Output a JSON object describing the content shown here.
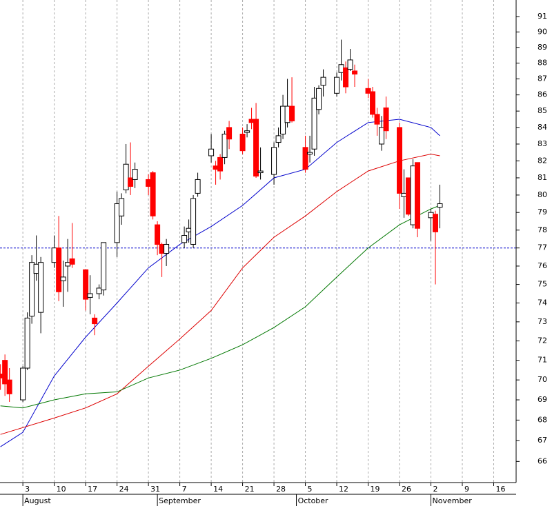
{
  "chart_data": {
    "type": "candlestick",
    "x": [
      -2,
      -1,
      0,
      3,
      4,
      5,
      6,
      7,
      10,
      11,
      12,
      13,
      14,
      17,
      18,
      19,
      20,
      21,
      24,
      25,
      26,
      27,
      28,
      31,
      32,
      33,
      34,
      35,
      39,
      40,
      41,
      42,
      45,
      46,
      47,
      48,
      49,
      52,
      53,
      54,
      55,
      56,
      59,
      60,
      61,
      62,
      63,
      66,
      67,
      68,
      69,
      70,
      73,
      74,
      75,
      76,
      77,
      80,
      81,
      82,
      83,
      84,
      87,
      88,
      89,
      90,
      91,
      94,
      95,
      96
    ],
    "open": [
      70.3,
      71.0,
      70.0,
      69.0,
      70.6,
      73.3,
      75.6,
      73.5,
      76.2,
      77.0,
      75.2,
      76.0,
      76.4,
      75.8,
      74.3,
      73.2,
      74.5,
      74.7,
      77.3,
      78.8,
      80.3,
      81.0,
      80.9,
      80.9,
      81.3,
      78.3,
      77.2,
      76.7,
      77.3,
      77.9,
      77.2,
      80.1,
      82.3,
      81.7,
      82.2,
      82.2,
      84.0,
      83.6,
      83.7,
      84.5,
      84.5,
      81.3,
      81.2,
      83.1,
      83.6,
      84.3,
      85.3,
      82.8,
      82.4,
      82.7,
      85.1,
      86.6,
      86.1,
      87.4,
      87.7,
      87.6,
      87.5,
      86.4,
      86.2,
      84.8,
      83.0,
      85.2,
      84.0,
      79.9,
      81.0,
      78.3,
      81.9,
      78.7,
      78.9,
      79.3
    ],
    "high": [
      70.8,
      71.3,
      70.6,
      70.7,
      73.5,
      76.6,
      77.7,
      76.5,
      77.7,
      78.8,
      76.3,
      77.5,
      78.4,
      75.8,
      75.5,
      73.4,
      75.0,
      77.3,
      80.2,
      80.1,
      83.0,
      83.1,
      81.9,
      81.2,
      81.4,
      78.5,
      77.3,
      77.5,
      78.2,
      78.6,
      80.0,
      81.3,
      83.6,
      82.0,
      82.4,
      83.8,
      84.4,
      84.0,
      84.2,
      85.2,
      85.5,
      82.8,
      83.1,
      84.0,
      86.0,
      87.0,
      87.1,
      83.5,
      83.5,
      86.5,
      86.6,
      87.6,
      87.4,
      89.5,
      88.1,
      88.9,
      87.9,
      87.0,
      86.5,
      85.2,
      84.7,
      85.9,
      84.3,
      81.5,
      81.0,
      82.1,
      81.9,
      79.2,
      79.1,
      80.6
    ],
    "low": [
      69.5,
      69.2,
      68.9,
      68.9,
      70.5,
      72.9,
      75.2,
      72.4,
      75.9,
      74.1,
      73.8,
      74.6,
      75.9,
      73.6,
      73.4,
      72.3,
      74.2,
      74.4,
      76.5,
      78.3,
      80.1,
      80.0,
      80.4,
      80.0,
      78.6,
      76.6,
      75.4,
      76.0,
      77.0,
      77.3,
      77.0,
      79.9,
      81.9,
      80.6,
      80.9,
      81.8,
      82.7,
      82.4,
      83.4,
      83.9,
      81.0,
      80.9,
      80.6,
      82.8,
      83.3,
      84.0,
      84.3,
      81.3,
      81.9,
      82.3,
      84.8,
      85.9,
      85.9,
      86.9,
      86.1,
      87.5,
      86.5,
      85.8,
      84.6,
      83.5,
      82.6,
      83.3,
      79.2,
      78.7,
      78.8,
      78.1,
      77.6,
      77.4,
      75.0,
      78.1
    ],
    "close": [
      70.1,
      69.8,
      69.3,
      70.6,
      73.2,
      76.2,
      76.1,
      76.2,
      77.0,
      74.6,
      75.4,
      76.2,
      76.1,
      74.2,
      74.5,
      72.9,
      74.8,
      77.3,
      79.5,
      79.8,
      81.8,
      80.5,
      81.5,
      80.5,
      78.8,
      77.2,
      76.7,
      77.2,
      77.7,
      78.1,
      79.8,
      80.9,
      82.7,
      81.5,
      81.4,
      83.6,
      83.3,
      82.6,
      83.8,
      84.3,
      81.1,
      81.4,
      82.8,
      83.5,
      85.3,
      85.3,
      84.4,
      81.5,
      82.5,
      85.8,
      86.4,
      87.1,
      87.1,
      87.9,
      86.5,
      88.2,
      87.3,
      86.1,
      84.8,
      84.2,
      84.0,
      83.8,
      80.1,
      80.1,
      78.9,
      81.7,
      78.1,
      79.0,
      77.9,
      79.5
    ],
    "up_color": "#ffffff",
    "down_color": "#ff0000",
    "lines": [
      {
        "color": "#0000cc",
        "x": [
          -2,
          3,
          10,
          17,
          24,
          31,
          38,
          45,
          52,
          59,
          66,
          73,
          80,
          87,
          94,
          96
        ],
        "values": [
          66.7,
          67.4,
          70.2,
          72.2,
          74.0,
          75.9,
          77.2,
          78.2,
          79.4,
          81.0,
          81.5,
          83.1,
          84.3,
          84.5,
          84.0,
          83.5
        ]
      },
      {
        "color": "#dd0000",
        "x": [
          -2,
          10,
          17,
          24,
          31,
          38,
          45,
          52,
          59,
          66,
          73,
          80,
          87,
          94,
          96
        ],
        "values": [
          67.3,
          68.1,
          68.6,
          69.3,
          70.7,
          72.1,
          73.6,
          75.9,
          77.6,
          78.8,
          80.2,
          81.4,
          82.0,
          82.4,
          82.3
        ]
      },
      {
        "color": "#007700",
        "x": [
          -2,
          3,
          10,
          17,
          24,
          31,
          38,
          45,
          52,
          59,
          66,
          73,
          80,
          87,
          94,
          96
        ],
        "values": [
          68.7,
          68.6,
          69.0,
          69.3,
          69.4,
          70.1,
          70.5,
          71.1,
          71.8,
          72.7,
          73.8,
          75.4,
          77.0,
          78.3,
          79.2,
          79.4
        ]
      }
    ],
    "reference_line": {
      "value": 77,
      "color": "#0000cc"
    },
    "xlim": [
      -2.1,
      113
    ],
    "ylim": [
      65,
      92.1
    ],
    "log_scale": true,
    "grid": "x",
    "xticks": [
      3,
      10,
      17,
      24,
      31,
      {
        "value": 38,
        "label": "7"
      },
      {
        "value": 45,
        "label": "14"
      },
      {
        "value": 52,
        "label": "21"
      },
      {
        "value": 59,
        "label": "28"
      },
      {
        "value": 66,
        "label": "5"
      },
      {
        "value": 73,
        "label": "12"
      },
      {
        "value": 80,
        "label": "19"
      },
      {
        "value": 87,
        "label": "26"
      },
      {
        "value": 94,
        "label": "2"
      },
      {
        "value": 101,
        "label": "9"
      },
      {
        "value": 108,
        "label": "16"
      }
    ],
    "month_labels": [
      {
        "value": 3,
        "label": "August"
      },
      {
        "value": 33,
        "label": "September"
      },
      {
        "value": 64,
        "label": "October"
      },
      {
        "value": 94,
        "label": "November"
      }
    ],
    "yticks": [
      66,
      67,
      68,
      69,
      70,
      71,
      72,
      73,
      74,
      75,
      76,
      77,
      78,
      79,
      80,
      81,
      82,
      83,
      84,
      85,
      86,
      87,
      88,
      89,
      90,
      91
    ]
  }
}
